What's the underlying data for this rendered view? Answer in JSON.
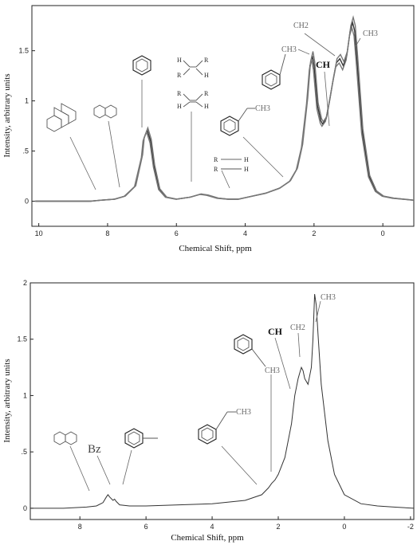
{
  "chart_data": [
    {
      "type": "line",
      "title": "",
      "xlabel": "Chemical Shift, ppm",
      "ylabel": "Intensity, arbitrary units",
      "xlim": [
        10.2,
        -0.9
      ],
      "ylim": [
        -0.25,
        1.95
      ],
      "xticks": [
        "10",
        "8",
        "6",
        "4",
        "2",
        "0"
      ],
      "xtick_values": [
        10,
        8,
        6,
        4,
        2,
        0
      ],
      "yticks": [
        "0",
        ".5",
        "1",
        "1.5"
      ],
      "ytick_values": [
        0,
        0.5,
        1,
        1.5
      ],
      "series": [
        {
          "x": [
            10.1,
            9,
            8.5,
            8.2,
            7.8,
            7.5,
            7.2,
            7.0,
            6.95,
            6.85,
            6.75,
            6.65,
            6.5,
            6.3,
            6.0,
            5.6,
            5.3,
            5.1,
            4.8,
            4.5,
            4.2,
            3.8,
            3.4,
            3.0,
            2.7,
            2.5,
            2.35,
            2.2,
            2.12,
            2.05,
            2.0,
            1.9,
            1.8,
            1.75,
            1.65,
            1.55,
            1.45,
            1.35,
            1.25,
            1.15,
            1.05,
            0.95,
            0.88,
            0.82,
            0.75,
            0.6,
            0.4,
            0.2,
            0.0,
            -0.3,
            -0.6,
            -0.9
          ],
          "y": [
            0.0,
            0.0,
            0.0,
            0.01,
            0.02,
            0.05,
            0.15,
            0.45,
            0.62,
            0.71,
            0.6,
            0.35,
            0.12,
            0.04,
            0.02,
            0.04,
            0.07,
            0.06,
            0.03,
            0.02,
            0.02,
            0.05,
            0.08,
            0.13,
            0.2,
            0.32,
            0.55,
            1.0,
            1.35,
            1.45,
            1.35,
            0.95,
            0.8,
            0.77,
            0.82,
            1.0,
            1.2,
            1.38,
            1.42,
            1.35,
            1.45,
            1.7,
            1.78,
            1.7,
            1.4,
            0.7,
            0.25,
            0.1,
            0.05,
            0.03,
            0.02,
            0.01
          ]
        }
      ],
      "annotations": {
        "ch3": "CH3",
        "ch2": "CH2",
        "ch": "CH"
      }
    },
    {
      "type": "line",
      "title": "",
      "xlabel": "Chemical Shift, ppm",
      "ylabel": "Intensity, arbitrary units",
      "xlim": [
        9.5,
        -2.1
      ],
      "ylim": [
        -0.1,
        2.0
      ],
      "xticks": [
        "8",
        "6",
        "4",
        "2",
        "0",
        "-2"
      ],
      "xtick_values": [
        8,
        6,
        4,
        2,
        0,
        -2
      ],
      "yticks": [
        "0",
        ".5",
        "1",
        "1.5",
        "2"
      ],
      "ytick_values": [
        0,
        0.5,
        1,
        1.5,
        2
      ],
      "series": [
        {
          "x": [
            9.5,
            8.5,
            7.8,
            7.5,
            7.3,
            7.2,
            7.15,
            7.1,
            7.0,
            6.95,
            6.9,
            6.8,
            6.5,
            6.0,
            5.0,
            4.0,
            3.0,
            2.5,
            2.3,
            2.2,
            2.1,
            2.0,
            1.8,
            1.6,
            1.5,
            1.4,
            1.35,
            1.3,
            1.25,
            1.2,
            1.1,
            1.0,
            0.95,
            0.9,
            0.85,
            0.8,
            0.7,
            0.5,
            0.3,
            0.0,
            -0.5,
            -1.0,
            -1.5,
            -2.1
          ],
          "y": [
            0.0,
            0.0,
            0.01,
            0.02,
            0.05,
            0.1,
            0.12,
            0.1,
            0.07,
            0.08,
            0.06,
            0.03,
            0.02,
            0.02,
            0.03,
            0.04,
            0.07,
            0.12,
            0.18,
            0.22,
            0.25,
            0.3,
            0.45,
            0.75,
            1.0,
            1.15,
            1.2,
            1.25,
            1.22,
            1.15,
            1.1,
            1.25,
            1.5,
            1.9,
            1.8,
            1.55,
            1.1,
            0.6,
            0.3,
            0.12,
            0.04,
            0.02,
            0.01,
            0.0
          ]
        }
      ],
      "annotations": {
        "ch3a": "CH3",
        "ch3b": "CH3",
        "ch2": "CH2",
        "ch": "CH",
        "ch3c": "CH3",
        "bz": "Bz"
      }
    }
  ]
}
